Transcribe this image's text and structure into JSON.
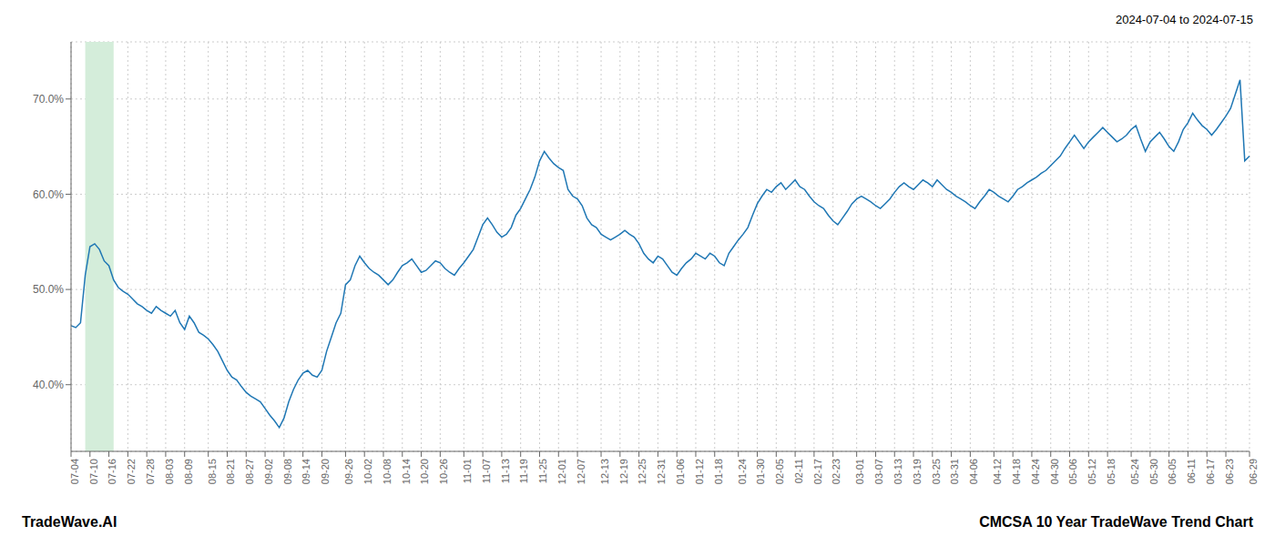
{
  "chart_data": {
    "type": "line",
    "title": "CMCSA 10 Year TradeWave Trend Chart",
    "subtitle": "2024-07-04 to 2024-07-15",
    "annotations": [
      "TradeWave.AI"
    ],
    "color": "#1f77b4",
    "grid": true,
    "ylim": [
      33,
      76
    ],
    "yticks": [
      {
        "value": 40,
        "label": "40.0%"
      },
      {
        "value": 50,
        "label": "50.0%"
      },
      {
        "value": 60,
        "label": "60.0%"
      },
      {
        "value": 70,
        "label": "70.0%"
      }
    ],
    "highlight": {
      "x_start": 3,
      "x_end": 9,
      "color": "#d4edda"
    },
    "categories": [
      "07-04",
      null,
      null,
      null,
      "07-10",
      null,
      null,
      null,
      "07-16",
      null,
      null,
      null,
      "07-22",
      null,
      null,
      null,
      "07-28",
      null,
      null,
      null,
      "08-03",
      null,
      null,
      null,
      "08-09",
      null,
      null,
      null,
      null,
      "08-15",
      null,
      null,
      null,
      "08-21",
      null,
      null,
      null,
      "08-27",
      null,
      null,
      null,
      "09-02",
      null,
      null,
      null,
      "09-08",
      null,
      null,
      null,
      "09-14",
      null,
      null,
      null,
      "09-20",
      null,
      null,
      null,
      null,
      "09-26",
      null,
      null,
      null,
      "10-02",
      null,
      null,
      null,
      "10-08",
      null,
      null,
      null,
      "10-14",
      null,
      null,
      null,
      "10-20",
      null,
      null,
      null,
      "10-26",
      null,
      null,
      null,
      null,
      "11-01",
      null,
      null,
      null,
      "11-07",
      null,
      null,
      null,
      "11-13",
      null,
      null,
      null,
      "11-19",
      null,
      null,
      null,
      "11-25",
      null,
      null,
      null,
      "12-01",
      null,
      null,
      null,
      "12-07",
      null,
      null,
      null,
      null,
      "12-13",
      null,
      null,
      null,
      "12-19",
      null,
      null,
      null,
      "12-25",
      null,
      null,
      null,
      "12-31",
      null,
      null,
      null,
      "01-06",
      null,
      null,
      null,
      "01-12",
      null,
      null,
      null,
      "01-18",
      null,
      null,
      null,
      null,
      "01-24",
      null,
      null,
      null,
      "01-30",
      null,
      null,
      null,
      "02-05",
      null,
      null,
      null,
      "02-11",
      null,
      null,
      null,
      "02-17",
      null,
      null,
      null,
      "02-23",
      null,
      null,
      null,
      null,
      "03-01",
      null,
      null,
      null,
      "03-07",
      null,
      null,
      null,
      "03-13",
      null,
      null,
      null,
      "03-19",
      null,
      null,
      null,
      "03-25",
      null,
      null,
      null,
      "03-31",
      null,
      null,
      null,
      "04-06",
      null,
      null,
      null,
      null,
      "04-12",
      null,
      null,
      null,
      "04-18",
      null,
      null,
      null,
      "04-24",
      null,
      null,
      null,
      "04-30",
      null,
      null,
      null,
      "05-06",
      null,
      null,
      null,
      "05-12",
      null,
      null,
      null,
      "05-18",
      null,
      null,
      null,
      null,
      "05-24",
      null,
      null,
      null,
      "05-30",
      null,
      null,
      null,
      "06-05",
      null,
      null,
      null,
      "06-11",
      null,
      null,
      null,
      "06-17",
      null,
      null,
      null,
      "06-23",
      null,
      null,
      null,
      null,
      "06-29"
    ],
    "values": [
      46.2,
      46.0,
      46.5,
      51.5,
      54.5,
      54.8,
      54.2,
      53.0,
      52.5,
      51.0,
      50.2,
      49.8,
      49.5,
      49.0,
      48.5,
      48.2,
      47.8,
      47.5,
      48.2,
      47.8,
      47.5,
      47.2,
      47.8,
      46.5,
      45.8,
      47.2,
      46.5,
      45.5,
      45.2,
      44.8,
      44.2,
      43.5,
      42.5,
      41.5,
      40.8,
      40.5,
      39.8,
      39.2,
      38.8,
      38.5,
      38.2,
      37.5,
      36.8,
      36.2,
      35.5,
      36.5,
      38.2,
      39.5,
      40.5,
      41.2,
      41.5,
      41.0,
      40.8,
      41.5,
      43.5,
      45.0,
      46.5,
      47.5,
      50.5,
      51.0,
      52.5,
      53.5,
      52.8,
      52.2,
      51.8,
      51.5,
      51.0,
      50.5,
      51.0,
      51.8,
      52.5,
      52.8,
      53.2,
      52.5,
      51.8,
      52.0,
      52.5,
      53.0,
      52.8,
      52.2,
      51.8,
      51.5,
      52.2,
      52.8,
      53.5,
      54.2,
      55.5,
      56.8,
      57.5,
      56.8,
      56.0,
      55.5,
      55.8,
      56.5,
      57.8,
      58.5,
      59.5,
      60.5,
      61.8,
      63.5,
      64.5,
      63.8,
      63.2,
      62.8,
      62.5,
      60.5,
      59.8,
      59.5,
      58.8,
      57.5,
      56.8,
      56.5,
      55.8,
      55.5,
      55.2,
      55.5,
      55.8,
      56.2,
      55.8,
      55.5,
      54.8,
      53.8,
      53.2,
      52.8,
      53.5,
      53.2,
      52.5,
      51.8,
      51.5,
      52.2,
      52.8,
      53.2,
      53.8,
      53.5,
      53.2,
      53.8,
      53.5,
      52.8,
      52.5,
      53.8,
      54.5,
      55.2,
      55.8,
      56.5,
      57.8,
      59.0,
      59.8,
      60.5,
      60.2,
      60.8,
      61.2,
      60.5,
      61.0,
      61.5,
      60.8,
      60.5,
      59.8,
      59.2,
      58.8,
      58.5,
      57.8,
      57.2,
      56.8,
      57.5,
      58.2,
      59.0,
      59.5,
      59.8,
      59.5,
      59.2,
      58.8,
      58.5,
      59.0,
      59.5,
      60.2,
      60.8,
      61.2,
      60.8,
      60.5,
      61.0,
      61.5,
      61.2,
      60.8,
      61.5,
      61.0,
      60.5,
      60.2,
      59.8,
      59.5,
      59.2,
      58.8,
      58.5,
      59.2,
      59.8,
      60.5,
      60.2,
      59.8,
      59.5,
      59.2,
      59.8,
      60.5,
      60.8,
      61.2,
      61.5,
      61.8,
      62.2,
      62.5,
      63.0,
      63.5,
      64.0,
      64.8,
      65.5,
      66.2,
      65.5,
      64.8,
      65.5,
      66.0,
      66.5,
      67.0,
      66.5,
      66.0,
      65.5,
      65.8,
      66.2,
      66.8,
      67.2,
      65.8,
      64.5,
      65.5,
      66.0,
      66.5,
      65.8,
      65.0,
      64.5,
      65.5,
      66.8,
      67.5,
      68.5,
      67.8,
      67.2,
      66.8,
      66.2,
      66.8,
      67.5,
      68.2,
      69.0,
      70.5,
      72.0,
      63.5,
      64.0
    ]
  }
}
